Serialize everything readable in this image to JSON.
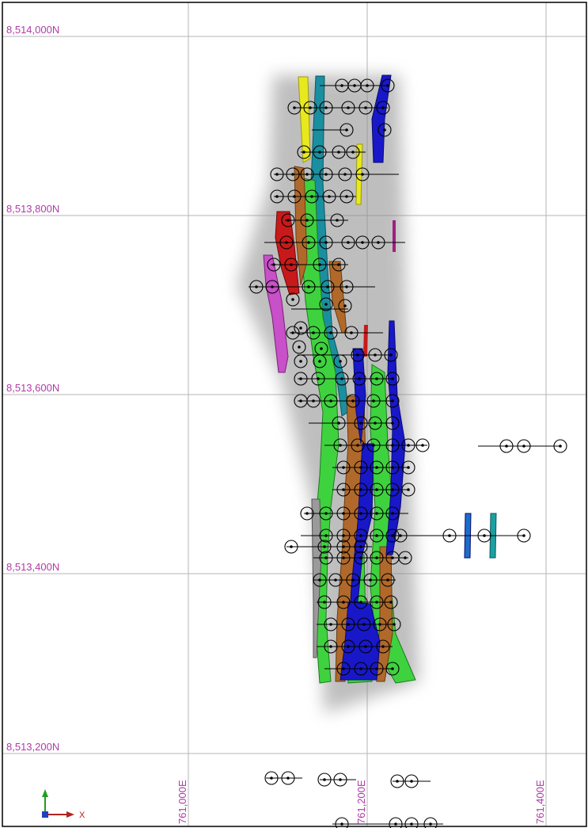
{
  "northing_labels": [
    "8,514,000N",
    "8,513,800N",
    "8,513,600N",
    "8,513,400N",
    "8,513,200N"
  ],
  "easting_labels": [
    "761,000E",
    "761,200E",
    "761,400E"
  ],
  "axis_triad": {
    "x_label": "X",
    "x_color": "#b22222",
    "y_color": "#20a020",
    "z_color": "#2040c0"
  },
  "colors": {
    "label": "#b03aa7",
    "grid": "#b5b5b5",
    "yellow": "#e8e81e",
    "teal": "#1a8fa0",
    "green": "#3fd23f",
    "brown": "#b0692a",
    "blue": "#1818c8",
    "red": "#c81a1a",
    "magenta": "#c850c8",
    "grey": "#9a9a9a"
  }
}
